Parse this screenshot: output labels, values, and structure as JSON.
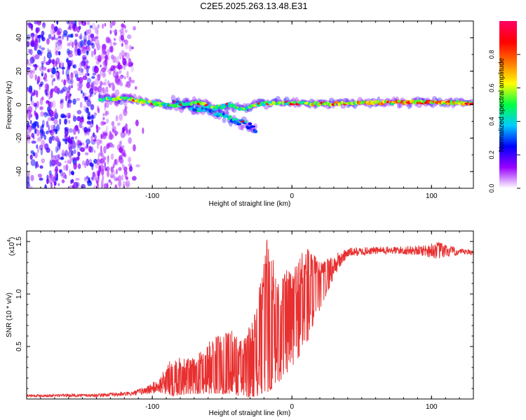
{
  "title": "C2E5.2025.263.13.48.E31",
  "chart_data": [
    {
      "type": "heatmap",
      "name": "spectrogram",
      "xlabel": "Height of straight line (km)",
      "ylabel": "Frequency (Hz)",
      "xlim": [
        -190,
        130
      ],
      "ylim": [
        -50,
        50
      ],
      "xticks": [
        -100,
        0,
        100
      ],
      "yticks": [
        -40,
        -20,
        0,
        20,
        40
      ],
      "colorbar": {
        "label": "Normalized spectral amplitude",
        "range": [
          0,
          1
        ],
        "ticks": [
          "0.0",
          "0.2",
          "0.4",
          "0.6",
          "0.8"
        ],
        "stops": [
          "#ffffff",
          "#9900ff",
          "#0000ff",
          "#00ccff",
          "#00ff44",
          "#ffff00",
          "#ff7700",
          "#ff0000",
          "#ff0066"
        ]
      },
      "noise_region_x": [
        -190,
        -115
      ],
      "ridge": [
        {
          "x": -137,
          "f": 3.5,
          "amp": 0.6
        },
        {
          "x": -115,
          "f": 3.5,
          "amp": 0.65
        },
        {
          "x": -100,
          "f": 1,
          "amp": 0.7
        },
        {
          "x": -85,
          "f": -1,
          "amp": 0.6
        },
        {
          "x": -70,
          "f": 1.5,
          "amp": 0.6
        },
        {
          "x": -55,
          "f": -2,
          "amp": 0.6
        },
        {
          "x": -45,
          "f": 0,
          "amp": 0.55
        },
        {
          "x": -35,
          "f": -3,
          "amp": 0.6
        },
        {
          "x": -22,
          "f": 0.5,
          "amp": 0.65
        },
        {
          "x": -10,
          "f": 1,
          "amp": 0.7
        },
        {
          "x": 0,
          "f": 1,
          "amp": 0.7
        },
        {
          "x": 20,
          "f": 0.5,
          "amp": 0.75
        },
        {
          "x": 50,
          "f": 1,
          "amp": 0.8
        },
        {
          "x": 90,
          "f": 1.5,
          "amp": 0.9
        },
        {
          "x": 130,
          "f": 1,
          "amp": 0.8
        }
      ],
      "branch": [
        {
          "x": -85,
          "f": 1,
          "amp": 0.5
        },
        {
          "x": -65,
          "f": -3,
          "amp": 0.5
        },
        {
          "x": -45,
          "f": -8,
          "amp": 0.5
        },
        {
          "x": -32,
          "f": -12,
          "amp": 0.45
        },
        {
          "x": -25,
          "f": -15,
          "amp": 0.3
        }
      ]
    },
    {
      "type": "line",
      "name": "snr",
      "xlabel": "Height of straight line (km)",
      "ylabel": "SNR (10 * v/v)",
      "scale_label": "(x10",
      "scale_exp": "4",
      "xlim": [
        -190,
        130
      ],
      "ylim": [
        0,
        1.6
      ],
      "xticks": [
        -100,
        0,
        100
      ],
      "yticks": [
        "0.5",
        "1.0",
        "1.5"
      ],
      "color": "#e83030",
      "envelope": [
        {
          "x": -190,
          "lo": 0.02,
          "hi": 0.045
        },
        {
          "x": -140,
          "lo": 0.02,
          "hi": 0.05
        },
        {
          "x": -115,
          "lo": 0.03,
          "hi": 0.07
        },
        {
          "x": -105,
          "lo": 0.04,
          "hi": 0.12
        },
        {
          "x": -95,
          "lo": 0.05,
          "hi": 0.2
        },
        {
          "x": -85,
          "lo": 0.03,
          "hi": 0.42
        },
        {
          "x": -70,
          "lo": 0.05,
          "hi": 0.38
        },
        {
          "x": -60,
          "lo": 0.05,
          "hi": 0.55
        },
        {
          "x": -45,
          "lo": 0.05,
          "hi": 0.68
        },
        {
          "x": -35,
          "lo": 0.02,
          "hi": 0.55
        },
        {
          "x": -25,
          "lo": 0.02,
          "hi": 0.9
        },
        {
          "x": -18,
          "lo": 0.05,
          "hi": 1.55
        },
        {
          "x": -10,
          "lo": 0.15,
          "hi": 1.2
        },
        {
          "x": 0,
          "lo": 0.3,
          "hi": 1.25
        },
        {
          "x": 10,
          "lo": 0.5,
          "hi": 1.5
        },
        {
          "x": 20,
          "lo": 0.85,
          "hi": 1.3
        },
        {
          "x": 30,
          "lo": 1.15,
          "hi": 1.38
        },
        {
          "x": 40,
          "lo": 1.35,
          "hi": 1.44
        },
        {
          "x": 60,
          "lo": 1.38,
          "hi": 1.45
        },
        {
          "x": 90,
          "lo": 1.37,
          "hi": 1.46
        },
        {
          "x": 105,
          "lo": 1.33,
          "hi": 1.5
        },
        {
          "x": 120,
          "lo": 1.37,
          "hi": 1.43
        },
        {
          "x": 130,
          "lo": 1.37,
          "hi": 1.42
        }
      ]
    }
  ]
}
